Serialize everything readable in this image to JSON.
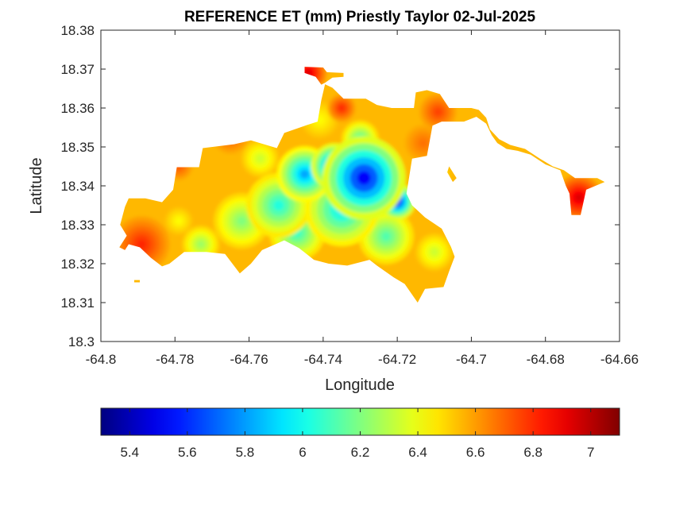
{
  "chart_data": {
    "type": "heatmap",
    "title": "REFERENCE ET (mm) Priestly Taylor 02-Jul-2025",
    "xlabel": "Longitude",
    "ylabel": "Latitude",
    "xlim": [
      -64.8,
      -64.66
    ],
    "ylim": [
      18.3,
      18.38
    ],
    "x_ticks": [
      -64.8,
      -64.78,
      -64.76,
      -64.74,
      -64.72,
      -64.7,
      -64.68,
      -64.66
    ],
    "x_tick_labels": [
      "-64.8",
      "-64.78",
      "-64.76",
      "-64.74",
      "-64.72",
      "-64.7",
      "-64.68",
      "-64.66"
    ],
    "y_ticks": [
      18.3,
      18.31,
      18.32,
      18.33,
      18.34,
      18.35,
      18.36,
      18.37,
      18.38
    ],
    "y_tick_labels": [
      "18.3",
      "18.31",
      "18.32",
      "18.33",
      "18.34",
      "18.35",
      "18.36",
      "18.37",
      "18.38"
    ],
    "grid": false,
    "colormap": "jet",
    "colorbar": {
      "placement": "bottom",
      "clim": [
        5.3,
        7.1
      ],
      "ticks": [
        5.4,
        5.6,
        5.8,
        6,
        6.2,
        6.4,
        6.6,
        6.8,
        7
      ],
      "tick_labels": [
        "5.4",
        "5.6",
        "5.8",
        "6",
        "6.2",
        "6.4",
        "6.6",
        "6.8",
        "7"
      ]
    },
    "field": {
      "background": 6.55,
      "features": [
        {
          "lon": -64.729,
          "lat": 18.342,
          "value": 5.35,
          "radius": 0.009
        },
        {
          "lon": -64.737,
          "lat": 18.345,
          "value": 5.45,
          "radius": 0.005
        },
        {
          "lon": -64.72,
          "lat": 18.336,
          "value": 5.4,
          "radius": 0.004
        },
        {
          "lon": -64.745,
          "lat": 18.343,
          "value": 5.7,
          "radius": 0.006
        },
        {
          "lon": -64.735,
          "lat": 18.334,
          "value": 5.85,
          "radius": 0.008
        },
        {
          "lon": -64.752,
          "lat": 18.335,
          "value": 5.95,
          "radius": 0.007
        },
        {
          "lon": -64.747,
          "lat": 18.328,
          "value": 6.0,
          "radius": 0.006
        },
        {
          "lon": -64.723,
          "lat": 18.327,
          "value": 6.05,
          "radius": 0.006
        },
        {
          "lon": -64.73,
          "lat": 18.352,
          "value": 6.05,
          "radius": 0.004
        },
        {
          "lon": -64.762,
          "lat": 18.331,
          "value": 6.15,
          "radius": 0.006
        },
        {
          "lon": -64.773,
          "lat": 18.325,
          "value": 6.2,
          "radius": 0.004
        },
        {
          "lon": -64.71,
          "lat": 18.323,
          "value": 6.3,
          "radius": 0.004
        },
        {
          "lon": -64.757,
          "lat": 18.347,
          "value": 6.3,
          "radius": 0.004
        },
        {
          "lon": -64.708,
          "lat": 18.343,
          "value": 6.45,
          "radius": 0.002
        },
        {
          "lon": -64.779,
          "lat": 18.331,
          "value": 6.4,
          "radius": 0.003
        },
        {
          "lon": -64.741,
          "lat": 18.357,
          "value": 6.4,
          "radius": 0.004
        },
        {
          "lon": -64.789,
          "lat": 18.325,
          "value": 6.85,
          "radius": 0.006
        },
        {
          "lon": -64.735,
          "lat": 18.36,
          "value": 6.85,
          "radius": 0.003
        },
        {
          "lon": -64.709,
          "lat": 18.359,
          "value": 6.8,
          "radius": 0.004
        },
        {
          "lon": -64.713,
          "lat": 18.351,
          "value": 6.7,
          "radius": 0.004
        },
        {
          "lon": -64.744,
          "lat": 18.369,
          "value": 7.0,
          "radius": 0.004
        },
        {
          "lon": -64.671,
          "lat": 18.337,
          "value": 7.0,
          "radius": 0.005
        },
        {
          "lon": -64.779,
          "lat": 18.345,
          "value": 6.75,
          "radius": 0.003
        },
        {
          "lon": -64.765,
          "lat": 18.353,
          "value": 6.75,
          "radius": 0.004
        },
        {
          "lon": -64.703,
          "lat": 18.313,
          "value": 6.75,
          "radius": 0.003
        }
      ]
    },
    "regions": [
      {
        "name": "main-island",
        "boundary": [
          [
            -64.7935,
            18.3346
          ],
          [
            -64.7925,
            18.3368
          ],
          [
            -64.788,
            18.3368
          ],
          [
            -64.7835,
            18.3358
          ],
          [
            -64.7805,
            18.339
          ],
          [
            -64.7795,
            18.3448
          ],
          [
            -64.7735,
            18.3448
          ],
          [
            -64.7725,
            18.3497
          ],
          [
            -64.764,
            18.3507
          ],
          [
            -64.7595,
            18.3517
          ],
          [
            -64.7525,
            18.3497
          ],
          [
            -64.7505,
            18.3536
          ],
          [
            -64.7445,
            18.3556
          ],
          [
            -64.7415,
            18.3565
          ],
          [
            -64.7405,
            18.362
          ],
          [
            -64.7395,
            18.3661
          ],
          [
            -64.7375,
            18.3652
          ],
          [
            -64.7345,
            18.3624
          ],
          [
            -64.7285,
            18.3624
          ],
          [
            -64.7255,
            18.3608
          ],
          [
            -64.7215,
            18.36
          ],
          [
            -64.7155,
            18.36
          ],
          [
            -64.715,
            18.364
          ],
          [
            -64.712,
            18.3646
          ],
          [
            -64.7085,
            18.3636
          ],
          [
            -64.706,
            18.36
          ],
          [
            -64.7,
            18.36
          ],
          [
            -64.698,
            18.358
          ],
          [
            -64.702,
            18.3565
          ],
          [
            -64.708,
            18.3565
          ],
          [
            -64.7105,
            18.3555
          ],
          [
            -64.712,
            18.3477
          ],
          [
            -64.716,
            18.347
          ],
          [
            -64.7175,
            18.338
          ],
          [
            -64.716,
            18.335
          ],
          [
            -64.7125,
            18.3319
          ],
          [
            -64.708,
            18.329
          ],
          [
            -64.7055,
            18.3243
          ],
          [
            -64.7045,
            18.3218
          ],
          [
            -64.706,
            18.318
          ],
          [
            -64.7075,
            18.314
          ],
          [
            -64.7125,
            18.3135
          ],
          [
            -64.7145,
            18.31
          ],
          [
            -64.718,
            18.3148
          ],
          [
            -64.721,
            18.3165
          ],
          [
            -64.7255,
            18.3195
          ],
          [
            -64.7275,
            18.321
          ],
          [
            -64.7335,
            18.3195
          ],
          [
            -64.7385,
            18.32
          ],
          [
            -64.7425,
            18.321
          ],
          [
            -64.7465,
            18.324
          ],
          [
            -64.7505,
            18.326
          ],
          [
            -64.7565,
            18.3235
          ],
          [
            -64.7595,
            18.32
          ],
          [
            -64.7625,
            18.3175
          ],
          [
            -64.7665,
            18.3225
          ],
          [
            -64.7715,
            18.323
          ],
          [
            -64.7775,
            18.323
          ],
          [
            -64.7815,
            18.32
          ],
          [
            -64.7835,
            18.3193
          ],
          [
            -64.7865,
            18.3215
          ],
          [
            -64.7895,
            18.3242
          ],
          [
            -64.7925,
            18.325
          ],
          [
            -64.7935,
            18.3235
          ],
          [
            -64.795,
            18.3242
          ],
          [
            -64.793,
            18.3272
          ],
          [
            -64.7948,
            18.33
          ],
          [
            -64.7935,
            18.3346
          ]
        ]
      },
      {
        "name": "east-tail",
        "boundary": [
          [
            -64.7,
            18.36
          ],
          [
            -64.698,
            18.3595
          ],
          [
            -64.696,
            18.3575
          ],
          [
            -64.695,
            18.3545
          ],
          [
            -64.6925,
            18.352
          ],
          [
            -64.6895,
            18.3505
          ],
          [
            -64.6855,
            18.3495
          ],
          [
            -64.6815,
            18.347
          ],
          [
            -64.678,
            18.345
          ],
          [
            -64.675,
            18.344
          ],
          [
            -64.672,
            18.342
          ],
          [
            -64.666,
            18.342
          ],
          [
            -64.664,
            18.341
          ],
          [
            -64.669,
            18.339
          ],
          [
            -64.6705,
            18.3325
          ],
          [
            -64.673,
            18.3325
          ],
          [
            -64.6735,
            18.338
          ],
          [
            -64.6745,
            18.34
          ],
          [
            -64.676,
            18.344
          ],
          [
            -64.68,
            18.3455
          ],
          [
            -64.684,
            18.348
          ],
          [
            -64.6875,
            18.349
          ],
          [
            -64.6905,
            18.3495
          ],
          [
            -64.693,
            18.351
          ],
          [
            -64.6945,
            18.353
          ],
          [
            -64.696,
            18.356
          ],
          [
            -64.699,
            18.358
          ],
          [
            -64.7,
            18.36
          ]
        ]
      },
      {
        "name": "north-spit",
        "boundary": [
          [
            -64.745,
            18.3706
          ],
          [
            -64.74,
            18.3704
          ],
          [
            -64.739,
            18.3692
          ],
          [
            -64.7345,
            18.369
          ],
          [
            -64.7345,
            18.368
          ],
          [
            -64.7375,
            18.3678
          ],
          [
            -64.7395,
            18.3665
          ],
          [
            -64.7405,
            18.366
          ],
          [
            -64.742,
            18.368
          ],
          [
            -64.745,
            18.369
          ],
          [
            -64.745,
            18.3706
          ]
        ]
      },
      {
        "name": "east-islet",
        "boundary": [
          [
            -64.705,
            18.341
          ],
          [
            -64.7065,
            18.3435
          ],
          [
            -64.706,
            18.345
          ],
          [
            -64.704,
            18.342
          ],
          [
            -64.705,
            18.341
          ]
        ]
      },
      {
        "name": "west-islet",
        "boundary": [
          [
            -64.791,
            18.3158
          ],
          [
            -64.7895,
            18.3158
          ],
          [
            -64.7895,
            18.3152
          ],
          [
            -64.791,
            18.3152
          ],
          [
            -64.791,
            18.3158
          ]
        ]
      }
    ]
  }
}
